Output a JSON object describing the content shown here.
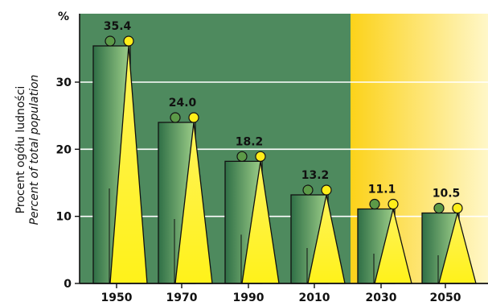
{
  "chart_data": {
    "type": "bar",
    "categories": [
      "1950",
      "1970",
      "1990",
      "2010",
      "2030",
      "2050"
    ],
    "values": [
      35.4,
      24.0,
      18.2,
      13.2,
      11.1,
      10.5
    ],
    "value_labels": [
      "35.4",
      "24.0",
      "18.2",
      "13.2",
      "11.1",
      "10.5"
    ],
    "ylabel_lines": [
      "Procent ogółu ludności",
      "Percent of total population"
    ],
    "yunit": "%",
    "yticks": [
      0,
      10,
      20,
      30
    ],
    "ylim": [
      0,
      40
    ],
    "grid": true,
    "projection_start_category": "2030"
  },
  "colors": {
    "green_bg": "#4e8a5e",
    "projection_bg_start": "#fcd21a",
    "projection_bg_end": "#fff7c8",
    "grid": "#ffffff",
    "bar_dark": "#2f6f46",
    "bar_light": "#9fd08a",
    "triangle": "#fff21a",
    "circle_green": "#5c9a48",
    "circle_yellow": "#ffee1a",
    "outline": "#111111"
  }
}
